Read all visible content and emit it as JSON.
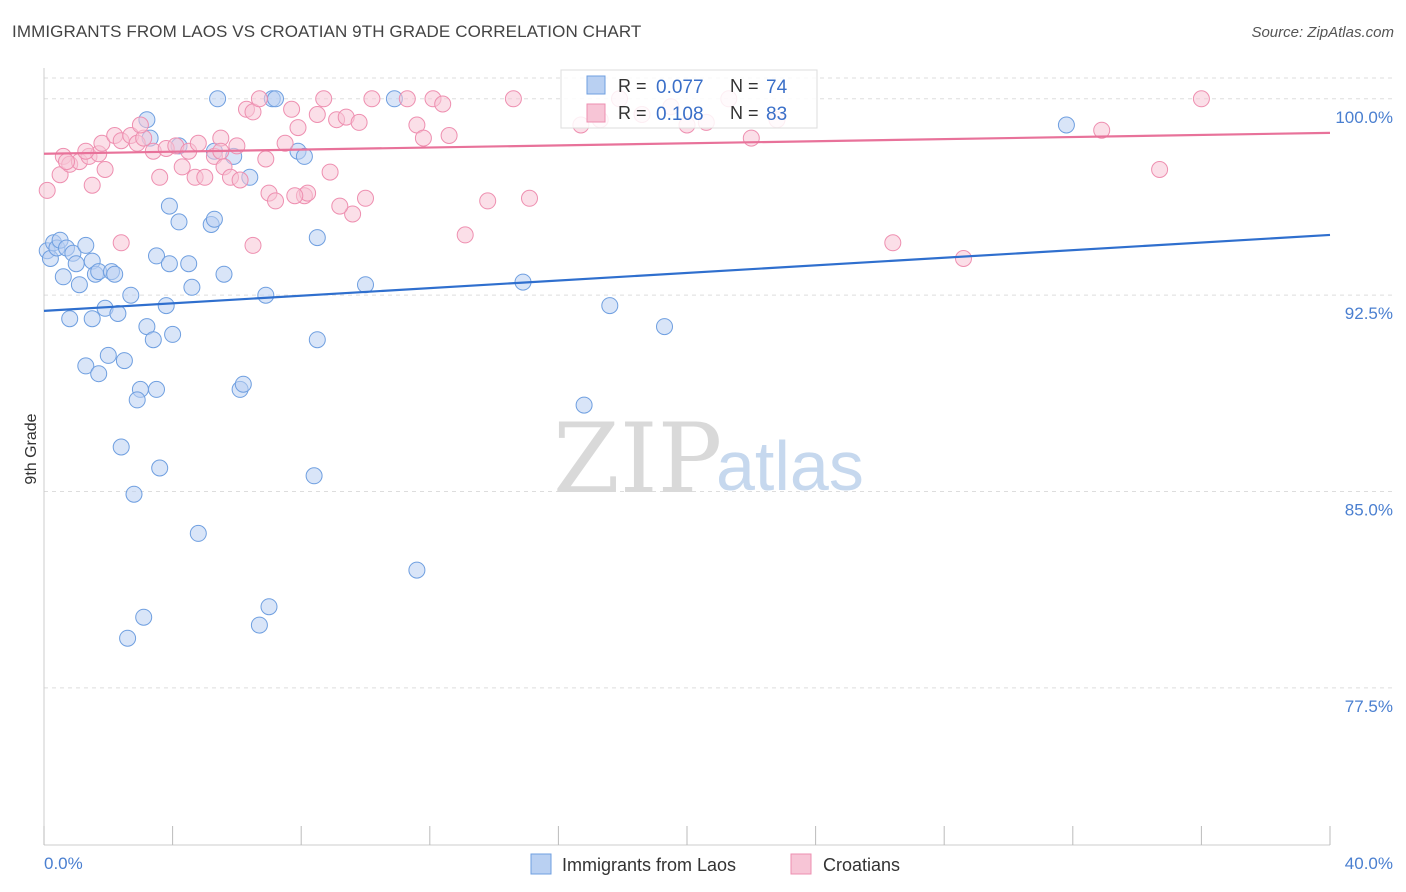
{
  "header": {
    "title": "IMMIGRANTS FROM LAOS VS CROATIAN 9TH GRADE CORRELATION CHART",
    "source": "Source: ZipAtlas.com"
  },
  "watermark": {
    "zip": "ZIP",
    "atlas": "atlas"
  },
  "colors": {
    "blue": "#6f9fe0",
    "blue_fill": "#b9d0f2",
    "blue_line": "#2f6fce",
    "pink": "#ee8fb0",
    "pink_fill": "#f7c5d6",
    "pink_line": "#e8729a",
    "grid": "#dddddd",
    "tick_text": "#4a7fd0"
  },
  "stats_legend": [
    {
      "r_label": "R =",
      "r_value": "0.077",
      "n_label": "N =",
      "n_value": "74"
    },
    {
      "r_label": "R =",
      "r_value": "0.108",
      "n_label": "N =",
      "n_value": "83"
    }
  ],
  "chart_data": {
    "type": "scatter",
    "title": "IMMIGRANTS FROM LAOS VS CROATIAN 9TH GRADE CORRELATION CHART",
    "xlabel": "",
    "ylabel": "9th Grade",
    "xlim": [
      0,
      40
    ],
    "ylim": [
      71.5,
      101.1
    ],
    "x_tick_labels": [
      "0.0%",
      "40.0%"
    ],
    "y_ticks": [
      77.5,
      85.0,
      92.5,
      100.0
    ],
    "y_tick_labels": [
      "77.5%",
      "85.0%",
      "92.5%",
      "100.0%"
    ],
    "grid": true,
    "legend_position": "bottom-center",
    "series": [
      {
        "name": "Immigrants from Laos",
        "color": "#6f9fe0",
        "trend": {
          "x": [
            0,
            40
          ],
          "y": [
            91.9,
            94.8
          ]
        },
        "points": [
          [
            0.1,
            94.2
          ],
          [
            0.2,
            93.9
          ],
          [
            0.3,
            94.5
          ],
          [
            0.4,
            94.3
          ],
          [
            0.5,
            94.6
          ],
          [
            0.7,
            94.3
          ],
          [
            0.6,
            93.2
          ],
          [
            0.9,
            94.1
          ],
          [
            1.0,
            93.7
          ],
          [
            1.1,
            92.9
          ],
          [
            1.3,
            94.4
          ],
          [
            1.5,
            93.8
          ],
          [
            1.6,
            93.3
          ],
          [
            1.7,
            93.4
          ],
          [
            2.1,
            93.4
          ],
          [
            2.2,
            93.3
          ],
          [
            0.8,
            91.6
          ],
          [
            1.5,
            91.6
          ],
          [
            1.9,
            92.0
          ],
          [
            2.3,
            91.8
          ],
          [
            2.7,
            92.5
          ],
          [
            2.0,
            90.2
          ],
          [
            2.5,
            90.0
          ],
          [
            1.3,
            89.8
          ],
          [
            1.7,
            89.5
          ],
          [
            3.0,
            88.9
          ],
          [
            2.9,
            88.5
          ],
          [
            3.5,
            88.9
          ],
          [
            3.2,
            91.3
          ],
          [
            3.4,
            90.8
          ],
          [
            4.0,
            91.0
          ],
          [
            3.8,
            92.1
          ],
          [
            3.5,
            94.0
          ],
          [
            3.9,
            93.7
          ],
          [
            4.5,
            93.7
          ],
          [
            4.6,
            92.8
          ],
          [
            4.2,
            95.3
          ],
          [
            5.2,
            95.2
          ],
          [
            5.3,
            95.4
          ],
          [
            5.6,
            93.3
          ],
          [
            3.2,
            99.2
          ],
          [
            3.3,
            98.5
          ],
          [
            3.9,
            95.9
          ],
          [
            5.3,
            98.0
          ],
          [
            5.9,
            97.8
          ],
          [
            4.2,
            98.2
          ],
          [
            6.4,
            97.0
          ],
          [
            6.1,
            88.9
          ],
          [
            6.2,
            89.1
          ],
          [
            6.9,
            92.5
          ],
          [
            5.4,
            100.0
          ],
          [
            7.1,
            100.0
          ],
          [
            7.2,
            100.0
          ],
          [
            7.9,
            98.0
          ],
          [
            8.1,
            97.8
          ],
          [
            8.5,
            94.7
          ],
          [
            8.5,
            90.8
          ],
          [
            10.0,
            92.9
          ],
          [
            10.9,
            100.0
          ],
          [
            14.9,
            93.0
          ],
          [
            2.4,
            86.7
          ],
          [
            3.6,
            85.9
          ],
          [
            2.8,
            84.9
          ],
          [
            8.4,
            85.6
          ],
          [
            4.8,
            83.4
          ],
          [
            11.6,
            82.0
          ],
          [
            7.0,
            80.6
          ],
          [
            3.1,
            80.2
          ],
          [
            2.6,
            79.4
          ],
          [
            6.7,
            79.9
          ],
          [
            16.8,
            88.3
          ],
          [
            17.6,
            92.1
          ],
          [
            19.3,
            91.3
          ],
          [
            31.8,
            99.0
          ]
        ]
      },
      {
        "name": "Croatians",
        "color": "#ee8fb0",
        "trend": {
          "x": [
            0,
            40
          ],
          "y": [
            97.9,
            98.7
          ]
        },
        "points": [
          [
            0.1,
            96.5
          ],
          [
            0.5,
            97.1
          ],
          [
            0.6,
            97.8
          ],
          [
            0.8,
            97.5
          ],
          [
            1.1,
            97.6
          ],
          [
            1.4,
            97.8
          ],
          [
            1.5,
            96.7
          ],
          [
            1.7,
            97.9
          ],
          [
            1.8,
            98.3
          ],
          [
            1.9,
            97.3
          ],
          [
            2.2,
            98.6
          ],
          [
            2.4,
            98.4
          ],
          [
            2.7,
            98.6
          ],
          [
            2.9,
            98.3
          ],
          [
            3.1,
            98.5
          ],
          [
            3.4,
            98.0
          ],
          [
            3.6,
            97.0
          ],
          [
            3.8,
            98.1
          ],
          [
            4.1,
            98.2
          ],
          [
            4.3,
            97.4
          ],
          [
            4.5,
            98.0
          ],
          [
            4.7,
            97.0
          ],
          [
            4.8,
            98.3
          ],
          [
            5.0,
            97.0
          ],
          [
            5.3,
            97.8
          ],
          [
            5.5,
            98.5
          ],
          [
            5.6,
            97.4
          ],
          [
            5.8,
            97.0
          ],
          [
            6.0,
            98.2
          ],
          [
            6.1,
            96.9
          ],
          [
            6.3,
            99.6
          ],
          [
            6.5,
            99.5
          ],
          [
            6.7,
            100.0
          ],
          [
            6.9,
            97.7
          ],
          [
            7.0,
            96.4
          ],
          [
            7.2,
            96.1
          ],
          [
            7.5,
            98.3
          ],
          [
            7.7,
            99.6
          ],
          [
            7.9,
            98.9
          ],
          [
            8.1,
            96.3
          ],
          [
            8.2,
            96.4
          ],
          [
            8.5,
            99.4
          ],
          [
            8.7,
            100.0
          ],
          [
            8.9,
            97.2
          ],
          [
            9.1,
            99.2
          ],
          [
            9.4,
            99.3
          ],
          [
            9.6,
            95.6
          ],
          [
            9.8,
            99.1
          ],
          [
            10.0,
            96.2
          ],
          [
            10.2,
            100.0
          ],
          [
            11.3,
            100.0
          ],
          [
            11.6,
            99.0
          ],
          [
            11.8,
            98.5
          ],
          [
            12.1,
            100.0
          ],
          [
            12.4,
            99.8
          ],
          [
            12.6,
            98.6
          ],
          [
            13.1,
            94.8
          ],
          [
            13.8,
            96.1
          ],
          [
            14.6,
            100.0
          ],
          [
            15.1,
            96.2
          ],
          [
            16.7,
            99.0
          ],
          [
            17.3,
            99.2
          ],
          [
            17.9,
            100.0
          ],
          [
            18.6,
            99.4
          ],
          [
            19.5,
            99.7
          ],
          [
            20.0,
            99.0
          ],
          [
            20.6,
            99.1
          ],
          [
            21.3,
            100.0
          ],
          [
            22.0,
            98.5
          ],
          [
            22.8,
            99.2
          ],
          [
            26.4,
            94.5
          ],
          [
            28.6,
            93.9
          ],
          [
            32.9,
            98.8
          ],
          [
            34.7,
            97.3
          ],
          [
            36.0,
            100.0
          ],
          [
            6.5,
            94.4
          ],
          [
            2.4,
            94.5
          ],
          [
            0.7,
            97.6
          ],
          [
            1.3,
            98.0
          ],
          [
            9.2,
            95.9
          ],
          [
            5.5,
            98.0
          ],
          [
            7.8,
            96.3
          ],
          [
            3.0,
            99.0
          ]
        ]
      }
    ]
  }
}
